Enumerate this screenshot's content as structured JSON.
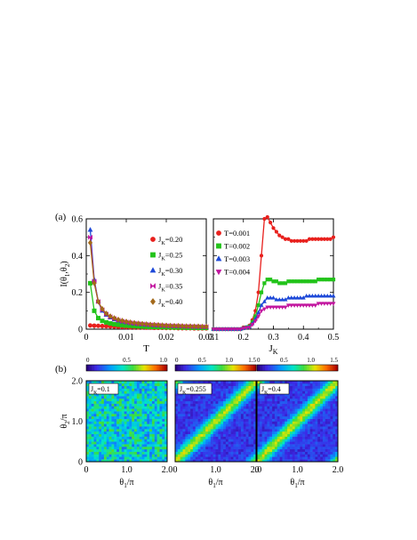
{
  "panel_labels": {
    "a": "(a)",
    "b": "(b)"
  },
  "chart_data": [
    {
      "type": "line",
      "panel": "(a) left",
      "ylabel": "I(θ1,θ2)",
      "xlabel": "T",
      "xlim": [
        0,
        0.03
      ],
      "ylim": [
        0,
        0.6
      ],
      "xticks": [
        "0",
        "0.01",
        "0.02",
        "0.03"
      ],
      "yticks": [
        "0",
        "0.2",
        "0.4",
        "0.6"
      ],
      "legend_position": "top-right",
      "x": [
        0.001,
        0.002,
        0.003,
        0.004,
        0.005,
        0.006,
        0.007,
        0.008,
        0.009,
        0.01,
        0.011,
        0.012,
        0.013,
        0.014,
        0.015,
        0.016,
        0.017,
        0.018,
        0.019,
        0.02,
        0.021,
        0.022,
        0.023,
        0.024,
        0.025,
        0.026,
        0.027,
        0.028,
        0.029,
        0.03
      ],
      "series": [
        {
          "name": "JK=0.20",
          "prefix": "J",
          "sub": "K",
          "suffix": "=0.20",
          "marker": "circle",
          "color": "#e8201d",
          "values": [
            0.02,
            0.019,
            0.018,
            0.017,
            0.016,
            0.015,
            0.014,
            0.013,
            0.012,
            0.011,
            0.01,
            0.01,
            0.009,
            0.009,
            0.008,
            0.008,
            0.007,
            0.007,
            0.007,
            0.006,
            0.006,
            0.006,
            0.005,
            0.005,
            0.005,
            0.005,
            0.004,
            0.004,
            0.004,
            0.004
          ]
        },
        {
          "name": "JK=0.25",
          "prefix": "J",
          "sub": "K",
          "suffix": "=0.25",
          "marker": "square",
          "color": "#22c31a",
          "values": [
            0.25,
            0.1,
            0.06,
            0.045,
            0.037,
            0.031,
            0.027,
            0.024,
            0.021,
            0.019,
            0.018,
            0.016,
            0.015,
            0.014,
            0.013,
            0.012,
            0.012,
            0.011,
            0.011,
            0.01,
            0.01,
            0.009,
            0.009,
            0.009,
            0.008,
            0.008,
            0.008,
            0.007,
            0.007,
            0.007
          ]
        },
        {
          "name": "JK=0.30",
          "prefix": "J",
          "sub": "K",
          "suffix": "=0.30",
          "marker": "triangle",
          "color": "#1e49d8",
          "values": [
            0.54,
            0.27,
            0.15,
            0.1,
            0.078,
            0.063,
            0.053,
            0.046,
            0.041,
            0.037,
            0.033,
            0.03,
            0.028,
            0.026,
            0.024,
            0.023,
            0.021,
            0.02,
            0.019,
            0.018,
            0.017,
            0.016,
            0.016,
            0.015,
            0.014,
            0.014,
            0.013,
            0.013,
            0.012,
            0.012
          ]
        },
        {
          "name": "JK=0.35",
          "prefix": "J",
          "sub": "K",
          "suffix": "=0.35",
          "marker": "bowtie",
          "color": "#c2169f",
          "values": [
            0.5,
            0.26,
            0.15,
            0.105,
            0.082,
            0.067,
            0.057,
            0.049,
            0.043,
            0.039,
            0.035,
            0.032,
            0.03,
            0.028,
            0.026,
            0.024,
            0.023,
            0.022,
            0.02,
            0.019,
            0.018,
            0.018,
            0.017,
            0.016,
            0.015,
            0.015,
            0.014,
            0.014,
            0.013,
            0.013
          ]
        },
        {
          "name": "JK=0.40",
          "prefix": "J",
          "sub": "K",
          "suffix": "=0.40",
          "marker": "diamond",
          "color": "#a3691a",
          "values": [
            0.47,
            0.25,
            0.15,
            0.11,
            0.085,
            0.07,
            0.06,
            0.052,
            0.046,
            0.041,
            0.037,
            0.034,
            0.031,
            0.029,
            0.027,
            0.025,
            0.024,
            0.023,
            0.021,
            0.02,
            0.019,
            0.018,
            0.018,
            0.017,
            0.016,
            0.016,
            0.015,
            0.015,
            0.014,
            0.014
          ]
        }
      ]
    },
    {
      "type": "line",
      "panel": "(a) right",
      "xlabel": "JK",
      "xlim": [
        0.1,
        0.5
      ],
      "ylim": [
        0,
        0.6
      ],
      "xticks": [
        "0.1",
        "0.2",
        "0.3",
        "0.4",
        "0.5"
      ],
      "legend_position": "top-left",
      "x": [
        0.1,
        0.11,
        0.12,
        0.13,
        0.14,
        0.15,
        0.16,
        0.17,
        0.18,
        0.19,
        0.2,
        0.21,
        0.22,
        0.23,
        0.24,
        0.25,
        0.26,
        0.27,
        0.28,
        0.29,
        0.3,
        0.31,
        0.32,
        0.33,
        0.34,
        0.35,
        0.36,
        0.37,
        0.38,
        0.39,
        0.4,
        0.41,
        0.42,
        0.43,
        0.44,
        0.45,
        0.46,
        0.47,
        0.48,
        0.49,
        0.5
      ],
      "series": [
        {
          "name": "T=0.001",
          "label": "T=0.001",
          "marker": "circle",
          "color": "#e8201d",
          "values": [
            0.0,
            0.0,
            0.0,
            0.0,
            0.0,
            0.0,
            0.0,
            0.0,
            0.0,
            0.0,
            0.01,
            0.01,
            0.02,
            0.05,
            0.1,
            0.2,
            0.4,
            0.6,
            0.61,
            0.58,
            0.55,
            0.53,
            0.51,
            0.5,
            0.49,
            0.49,
            0.48,
            0.48,
            0.48,
            0.48,
            0.48,
            0.48,
            0.49,
            0.49,
            0.49,
            0.49,
            0.49,
            0.49,
            0.49,
            0.49,
            0.5
          ]
        },
        {
          "name": "T=0.002",
          "label": "T=0.002",
          "marker": "square",
          "color": "#22c31a",
          "values": [
            0.0,
            0.0,
            0.0,
            0.0,
            0.0,
            0.0,
            0.0,
            0.0,
            0.0,
            0.0,
            0.005,
            0.01,
            0.015,
            0.04,
            0.07,
            0.13,
            0.2,
            0.25,
            0.27,
            0.27,
            0.26,
            0.26,
            0.25,
            0.25,
            0.25,
            0.26,
            0.26,
            0.26,
            0.26,
            0.26,
            0.26,
            0.26,
            0.26,
            0.26,
            0.26,
            0.27,
            0.27,
            0.27,
            0.27,
            0.27,
            0.27
          ]
        },
        {
          "name": "T=0.003",
          "label": "T=0.003",
          "marker": "triangle",
          "color": "#1e49d8",
          "values": [
            0.0,
            0.0,
            0.0,
            0.0,
            0.0,
            0.0,
            0.0,
            0.0,
            0.0,
            0.0,
            0.005,
            0.01,
            0.012,
            0.03,
            0.055,
            0.09,
            0.13,
            0.15,
            0.17,
            0.17,
            0.17,
            0.16,
            0.16,
            0.16,
            0.16,
            0.17,
            0.17,
            0.17,
            0.17,
            0.17,
            0.17,
            0.18,
            0.18,
            0.18,
            0.18,
            0.18,
            0.18,
            0.18,
            0.18,
            0.18,
            0.18
          ]
        },
        {
          "name": "T=0.004",
          "label": "T=0.004",
          "marker": "triangle-down",
          "color": "#c2169f",
          "values": [
            0.0,
            0.0,
            0.0,
            0.0,
            0.0,
            0.0,
            0.0,
            0.0,
            0.0,
            0.0,
            0.005,
            0.008,
            0.01,
            0.025,
            0.045,
            0.07,
            0.1,
            0.11,
            0.12,
            0.12,
            0.12,
            0.12,
            0.12,
            0.12,
            0.12,
            0.13,
            0.13,
            0.13,
            0.13,
            0.13,
            0.13,
            0.13,
            0.13,
            0.13,
            0.13,
            0.14,
            0.14,
            0.14,
            0.14,
            0.14,
            0.14
          ]
        }
      ]
    },
    {
      "type": "heatmap",
      "panel": "(b) left",
      "label_prefix": "J",
      "label_sub": "K",
      "label_suffix": "=0.1",
      "ylabel": "θ2/π",
      "xlabel": "θ1/π",
      "xticks": [
        "0",
        "1.0",
        "2.0"
      ],
      "yticks": [
        "0",
        "1.0",
        "2.0"
      ],
      "colorbar_ticks": [
        "0",
        "0.5",
        "1.0"
      ],
      "colorbar_range": [
        0,
        1.0
      ],
      "pattern": "uniform-noise",
      "grid_size": 32
    },
    {
      "type": "heatmap",
      "panel": "(b) middle",
      "label_prefix": "J",
      "label_sub": "K",
      "label_suffix": "=0.255",
      "xlabel": "θ1/π",
      "xticks": [
        "0",
        "1.0",
        "2.0"
      ],
      "colorbar_ticks": [
        "0",
        "0.5",
        "1.0",
        "1.5"
      ],
      "colorbar_range": [
        0,
        1.5
      ],
      "pattern": "diagonal-band",
      "grid_size": 32
    },
    {
      "type": "heatmap",
      "panel": "(b) right",
      "label_prefix": "J",
      "label_sub": "K",
      "label_suffix": "=0.4",
      "xlabel": "θ1/π",
      "xticks": [
        "0",
        "1.0",
        "2.0"
      ],
      "colorbar_ticks": [
        "0",
        "0.5",
        "1.0",
        "1.5"
      ],
      "colorbar_range": [
        0,
        1.5
      ],
      "pattern": "diagonal-band",
      "grid_size": 32
    }
  ]
}
